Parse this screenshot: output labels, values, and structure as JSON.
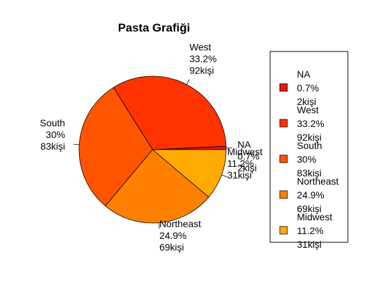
{
  "chart_data": {
    "type": "pie",
    "title": "Pasta Grafiği",
    "legend": "right",
    "slices": [
      {
        "name": "NA",
        "percent_label": "0.7%",
        "count_label": "2kişi",
        "value": 2,
        "color": "#E31A0B"
      },
      {
        "name": "West",
        "percent_label": "33.2%",
        "count_label": "92kişi",
        "value": 92,
        "color": "#FF3300"
      },
      {
        "name": "South",
        "percent_label": "30%",
        "count_label": "83kişi",
        "value": 83,
        "color": "#FF5500"
      },
      {
        "name": "Northeast",
        "percent_label": "24.9%",
        "count_label": "69kişi",
        "value": 69,
        "color": "#FF8000"
      },
      {
        "name": "Midwest",
        "percent_label": "11.2%",
        "count_label": "31kişi",
        "value": 31,
        "color": "#FFAA00"
      }
    ]
  }
}
